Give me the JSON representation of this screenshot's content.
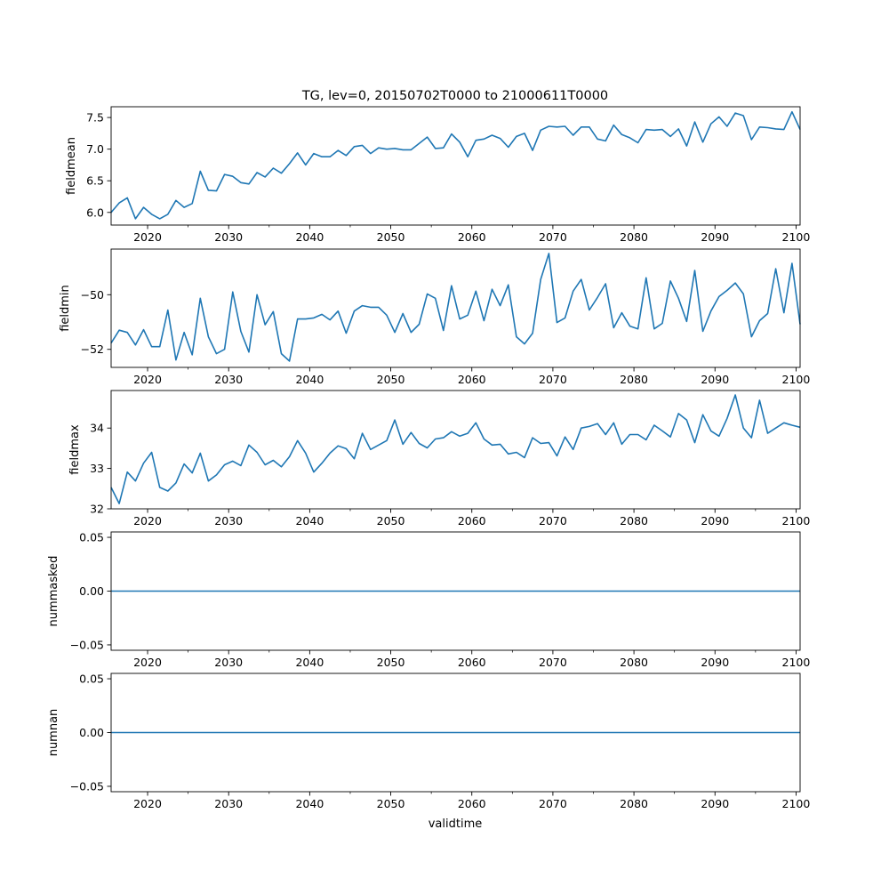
{
  "chart_data": {
    "type": "line",
    "title": "TG, lev=0, 20150702T0000 to 21000611T0000",
    "xlabel": "validtime",
    "x_start": 2015.5,
    "x_step": 1,
    "xlim": [
      2015.5,
      2100.5
    ],
    "xticks": [
      "2020",
      "2030",
      "2040",
      "2050",
      "2060",
      "2070",
      "2080",
      "2090",
      "2100"
    ],
    "xtick_values": [
      2020,
      2030,
      2040,
      2050,
      2060,
      2070,
      2080,
      2090,
      2100
    ],
    "x_minor_step": 5,
    "line_color": "#1f77b4",
    "grid": false,
    "panels": [
      {
        "ylabel": "fieldmean",
        "ylim": [
          5.8,
          7.67
        ],
        "yticks": [
          "6.0",
          "6.5",
          "7.0",
          "7.5"
        ],
        "ytick_values": [
          6.0,
          6.5,
          7.0,
          7.5
        ],
        "values": [
          6.0,
          6.15,
          6.23,
          5.9,
          6.08,
          5.97,
          5.9,
          5.97,
          6.19,
          6.08,
          6.14,
          6.65,
          6.35,
          6.34,
          6.6,
          6.57,
          6.47,
          6.45,
          6.63,
          6.56,
          6.7,
          6.62,
          6.77,
          6.94,
          6.75,
          6.93,
          6.88,
          6.88,
          6.98,
          6.9,
          7.04,
          7.06,
          6.93,
          7.02,
          7.0,
          7.01,
          6.99,
          6.99,
          7.09,
          7.19,
          7.01,
          7.02,
          7.24,
          7.11,
          6.88,
          7.14,
          7.16,
          7.22,
          7.17,
          7.03,
          7.2,
          7.25,
          6.98,
          7.3,
          7.36,
          7.35,
          7.36,
          7.22,
          7.35,
          7.35,
          7.16,
          7.13,
          7.38,
          7.23,
          7.18,
          7.1,
          7.31,
          7.3,
          7.31,
          7.2,
          7.32,
          7.05,
          7.43,
          7.11,
          7.4,
          7.51,
          7.36,
          7.57,
          7.53,
          7.15,
          7.35,
          7.34,
          7.32,
          7.31,
          7.59,
          7.31
        ]
      },
      {
        "ylabel": "fieldmin",
        "ylim": [
          -52.66,
          -48.33
        ],
        "yticks": [
          "−52",
          "−50"
        ],
        "ytick_values": [
          -52,
          -50
        ],
        "values": [
          -51.77,
          -51.3,
          -51.38,
          -51.84,
          -51.28,
          -51.9,
          -51.9,
          -50.56,
          -52.39,
          -51.38,
          -52.2,
          -50.13,
          -51.54,
          -52.16,
          -52.0,
          -49.9,
          -51.34,
          -52.1,
          -50.0,
          -51.1,
          -50.62,
          -52.16,
          -52.43,
          -50.89,
          -50.89,
          -50.85,
          -50.72,
          -50.92,
          -50.6,
          -51.41,
          -50.6,
          -50.4,
          -50.46,
          -50.46,
          -50.75,
          -51.38,
          -50.69,
          -51.38,
          -51.08,
          -49.97,
          -50.13,
          -51.31,
          -49.67,
          -50.89,
          -50.75,
          -49.87,
          -50.95,
          -49.8,
          -50.4,
          -49.64,
          -51.54,
          -51.8,
          -51.41,
          -49.44,
          -48.49,
          -51.02,
          -50.85,
          -49.87,
          -49.44,
          -50.56,
          -50.1,
          -49.6,
          -51.21,
          -50.66,
          -51.15,
          -51.25,
          -49.38,
          -51.25,
          -51.05,
          -49.5,
          -50.13,
          -50.98,
          -49.11,
          -51.34,
          -50.6,
          -50.07,
          -49.84,
          -49.57,
          -49.97,
          -51.54,
          -50.95,
          -50.69,
          -49.05,
          -50.66,
          -48.85,
          -51.08
        ]
      },
      {
        "ylabel": "fieldmax",
        "ylim": [
          32.0,
          34.93
        ],
        "yticks": [
          "32",
          "33",
          "34"
        ],
        "ytick_values": [
          32,
          33,
          34
        ],
        "values": [
          32.53,
          32.13,
          32.91,
          32.69,
          33.13,
          33.4,
          32.53,
          32.44,
          32.64,
          33.11,
          32.89,
          33.38,
          32.69,
          32.84,
          33.09,
          33.18,
          33.07,
          33.58,
          33.4,
          33.09,
          33.2,
          33.04,
          33.29,
          33.69,
          33.38,
          32.91,
          33.13,
          33.38,
          33.56,
          33.49,
          33.24,
          33.87,
          33.47,
          33.58,
          33.69,
          34.2,
          33.6,
          33.89,
          33.62,
          33.51,
          33.73,
          33.76,
          33.91,
          33.8,
          33.87,
          34.13,
          33.73,
          33.58,
          33.6,
          33.36,
          33.4,
          33.27,
          33.76,
          33.62,
          33.64,
          33.31,
          33.78,
          33.47,
          34.0,
          34.04,
          34.11,
          33.84,
          34.13,
          33.6,
          33.84,
          33.84,
          33.71,
          34.07,
          33.93,
          33.78,
          34.36,
          34.2,
          33.64,
          34.33,
          33.93,
          33.8,
          34.24,
          34.82,
          34.0,
          33.76,
          34.69,
          33.87,
          34.0,
          34.13,
          34.07,
          34.02
        ]
      },
      {
        "ylabel": "nummasked",
        "ylim": [
          -0.055,
          0.055
        ],
        "yticks": [
          "−0.05",
          "0.00",
          "0.05"
        ],
        "ytick_values": [
          -0.05,
          0,
          0.05
        ],
        "values": [
          0,
          0,
          0,
          0,
          0,
          0,
          0,
          0,
          0,
          0,
          0,
          0,
          0,
          0,
          0,
          0,
          0,
          0,
          0,
          0,
          0,
          0,
          0,
          0,
          0,
          0,
          0,
          0,
          0,
          0,
          0,
          0,
          0,
          0,
          0,
          0,
          0,
          0,
          0,
          0,
          0,
          0,
          0,
          0,
          0,
          0,
          0,
          0,
          0,
          0,
          0,
          0,
          0,
          0,
          0,
          0,
          0,
          0,
          0,
          0,
          0,
          0,
          0,
          0,
          0,
          0,
          0,
          0,
          0,
          0,
          0,
          0,
          0,
          0,
          0,
          0,
          0,
          0,
          0,
          0,
          0,
          0,
          0,
          0,
          0,
          0
        ]
      },
      {
        "ylabel": "numnan",
        "ylim": [
          -0.055,
          0.055
        ],
        "yticks": [
          "−0.05",
          "0.00",
          "0.05"
        ],
        "ytick_values": [
          -0.05,
          0,
          0.05
        ],
        "values": [
          0,
          0,
          0,
          0,
          0,
          0,
          0,
          0,
          0,
          0,
          0,
          0,
          0,
          0,
          0,
          0,
          0,
          0,
          0,
          0,
          0,
          0,
          0,
          0,
          0,
          0,
          0,
          0,
          0,
          0,
          0,
          0,
          0,
          0,
          0,
          0,
          0,
          0,
          0,
          0,
          0,
          0,
          0,
          0,
          0,
          0,
          0,
          0,
          0,
          0,
          0,
          0,
          0,
          0,
          0,
          0,
          0,
          0,
          0,
          0,
          0,
          0,
          0,
          0,
          0,
          0,
          0,
          0,
          0,
          0,
          0,
          0,
          0,
          0,
          0,
          0,
          0,
          0,
          0,
          0,
          0,
          0,
          0,
          0,
          0,
          0
        ]
      }
    ]
  }
}
